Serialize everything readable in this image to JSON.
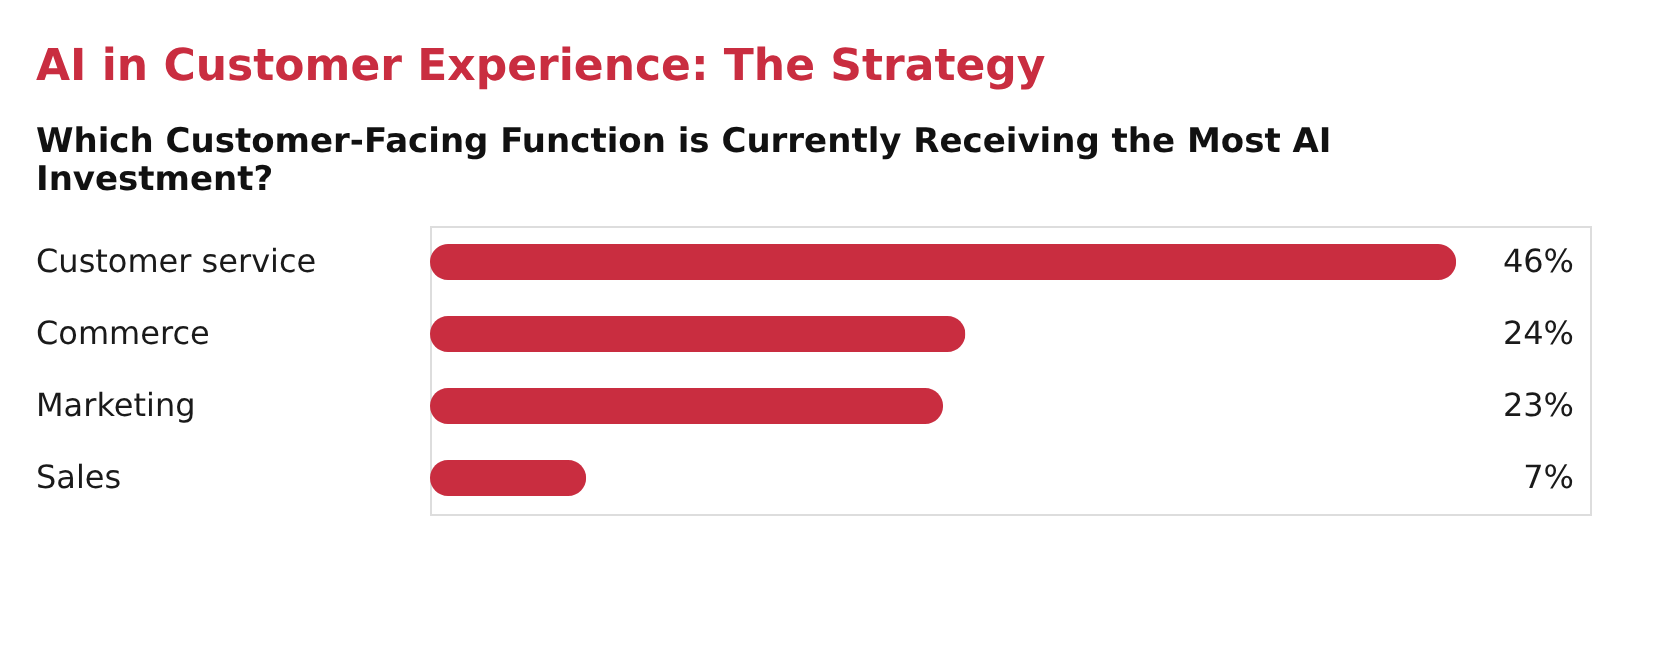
{
  "chart_data": {
    "type": "bar",
    "orientation": "horizontal",
    "title": "AI in Customer Experience: The Strategy",
    "subtitle": "Which Customer-Facing Function is Currently Receiving the Most AI Investment?",
    "categories": [
      "Customer service",
      "Commerce",
      "Marketing",
      "Sales"
    ],
    "values": [
      46,
      24,
      23,
      7
    ],
    "color": "#c92d40",
    "xlim": [
      0,
      52
    ],
    "value_labels": [
      "46%",
      "24%",
      "23%",
      "7%"
    ]
  }
}
